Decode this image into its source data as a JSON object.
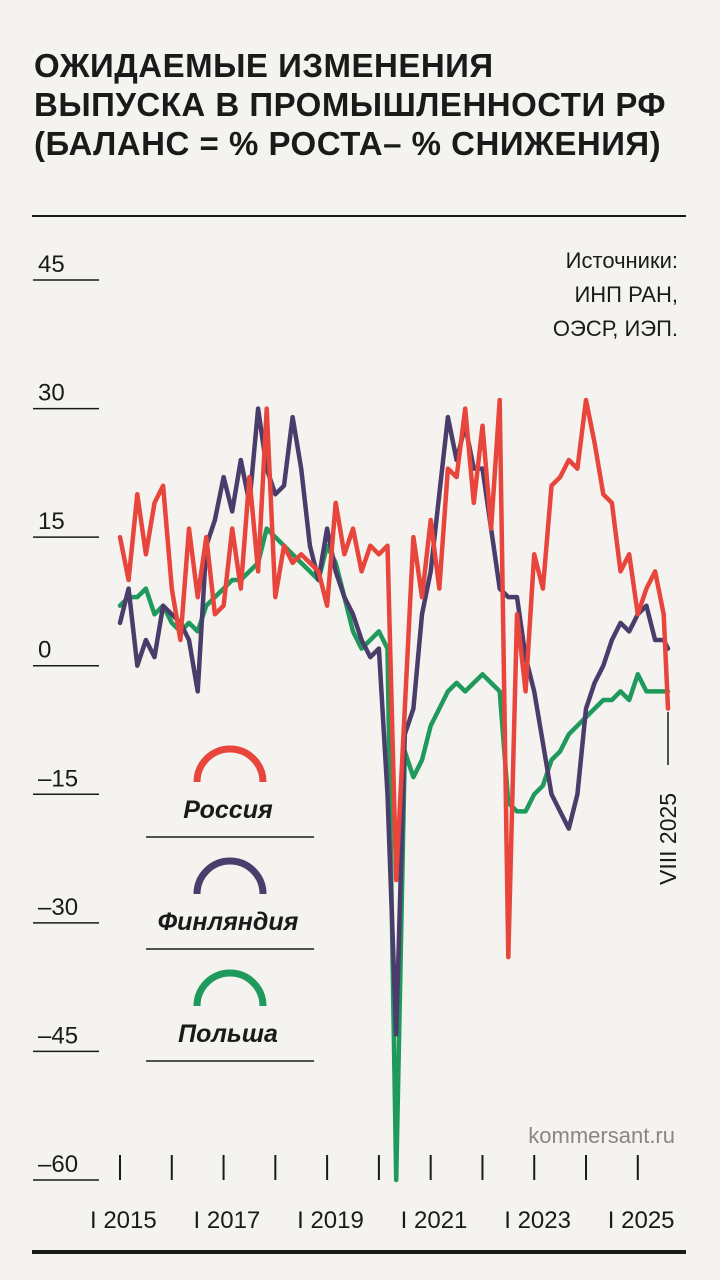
{
  "title": "Ожидаемые изменения выпуска в промышленности РФ (баланс = % роста– % снижения)",
  "source_label": [
    "Источники:",
    "ИНП РАН,",
    "ОЭСР, ИЭП."
  ],
  "watermark": "kommersant.ru",
  "end_label": "VIII 2025",
  "colors": {
    "russia": "#e8463c",
    "finland": "#4a3d6b",
    "poland": "#1f9a5c",
    "ink": "#1a1a1a"
  },
  "chart_data": {
    "type": "line",
    "title": "Ожидаемые изменения выпуска в промышленности РФ (баланс = % роста– % снижения)",
    "xlabel": "",
    "ylabel": "",
    "ylim": [
      -60,
      45
    ],
    "y_ticks": [
      45,
      30,
      15,
      0,
      -15,
      -30,
      -45,
      -60
    ],
    "y_tick_labels": [
      "45",
      "30",
      "15",
      "0",
      "–15",
      "–30",
      "–45",
      "–60"
    ],
    "x_range": [
      "2015-01",
      "2025-08"
    ],
    "x_labels": [
      {
        "year": 2015,
        "label": "I 2015"
      },
      {
        "year": 2017,
        "label": "I 2017"
      },
      {
        "year": 2019,
        "label": "I 2019"
      },
      {
        "year": 2021,
        "label": "I 2021"
      },
      {
        "year": 2023,
        "label": "I 2023"
      },
      {
        "year": 2025,
        "label": "I 2025"
      }
    ],
    "legend_position": "left",
    "grid": false,
    "series": [
      {
        "name": "Россия",
        "color": "#e8463c",
        "points": [
          [
            "2015-01",
            15
          ],
          [
            "2015-03",
            10
          ],
          [
            "2015-05",
            20
          ],
          [
            "2015-07",
            13
          ],
          [
            "2015-09",
            19
          ],
          [
            "2015-11",
            21
          ],
          [
            "2016-01",
            9
          ],
          [
            "2016-03",
            3
          ],
          [
            "2016-05",
            16
          ],
          [
            "2016-07",
            8
          ],
          [
            "2016-09",
            15
          ],
          [
            "2016-11",
            6
          ],
          [
            "2017-01",
            7
          ],
          [
            "2017-03",
            16
          ],
          [
            "2017-05",
            9
          ],
          [
            "2017-07",
            22
          ],
          [
            "2017-09",
            11
          ],
          [
            "2017-11",
            30
          ],
          [
            "2018-01",
            8
          ],
          [
            "2018-03",
            14
          ],
          [
            "2018-05",
            12
          ],
          [
            "2018-07",
            13
          ],
          [
            "2018-09",
            12
          ],
          [
            "2018-11",
            11
          ],
          [
            "2019-01",
            7
          ],
          [
            "2019-03",
            19
          ],
          [
            "2019-05",
            13
          ],
          [
            "2019-07",
            16
          ],
          [
            "2019-09",
            11
          ],
          [
            "2019-11",
            14
          ],
          [
            "2020-01",
            13
          ],
          [
            "2020-03",
            14
          ],
          [
            "2020-05",
            -25
          ],
          [
            "2020-07",
            -5
          ],
          [
            "2020-09",
            15
          ],
          [
            "2020-11",
            8
          ],
          [
            "2021-01",
            17
          ],
          [
            "2021-03",
            9
          ],
          [
            "2021-05",
            23
          ],
          [
            "2021-07",
            22
          ],
          [
            "2021-09",
            30
          ],
          [
            "2021-11",
            19
          ],
          [
            "2022-01",
            28
          ],
          [
            "2022-03",
            16
          ],
          [
            "2022-05",
            31
          ],
          [
            "2022-07",
            -34
          ],
          [
            "2022-09",
            6
          ],
          [
            "2022-11",
            -3
          ],
          [
            "2023-01",
            13
          ],
          [
            "2023-03",
            9
          ],
          [
            "2023-05",
            21
          ],
          [
            "2023-07",
            22
          ],
          [
            "2023-09",
            24
          ],
          [
            "2023-11",
            23
          ],
          [
            "2024-01",
            31
          ],
          [
            "2024-03",
            26
          ],
          [
            "2024-05",
            20
          ],
          [
            "2024-07",
            19
          ],
          [
            "2024-09",
            11
          ],
          [
            "2024-11",
            13
          ],
          [
            "2025-01",
            6
          ],
          [
            "2025-03",
            9
          ],
          [
            "2025-05",
            11
          ],
          [
            "2025-07",
            6
          ],
          [
            "2025-08",
            -5
          ]
        ]
      },
      {
        "name": "Финляндия",
        "color": "#4a3d6b",
        "points": [
          [
            "2015-01",
            5
          ],
          [
            "2015-03",
            9
          ],
          [
            "2015-05",
            0
          ],
          [
            "2015-07",
            3
          ],
          [
            "2015-09",
            1
          ],
          [
            "2015-11",
            7
          ],
          [
            "2016-01",
            6
          ],
          [
            "2016-03",
            5
          ],
          [
            "2016-05",
            3
          ],
          [
            "2016-07",
            -3
          ],
          [
            "2016-09",
            14
          ],
          [
            "2016-11",
            17
          ],
          [
            "2017-01",
            22
          ],
          [
            "2017-03",
            18
          ],
          [
            "2017-05",
            24
          ],
          [
            "2017-07",
            19
          ],
          [
            "2017-09",
            30
          ],
          [
            "2017-11",
            23
          ],
          [
            "2018-01",
            20
          ],
          [
            "2018-03",
            21
          ],
          [
            "2018-05",
            29
          ],
          [
            "2018-07",
            23
          ],
          [
            "2018-09",
            14
          ],
          [
            "2018-11",
            10
          ],
          [
            "2019-01",
            16
          ],
          [
            "2019-03",
            11
          ],
          [
            "2019-05",
            8
          ],
          [
            "2019-07",
            6
          ],
          [
            "2019-09",
            3
          ],
          [
            "2019-11",
            1
          ],
          [
            "2020-01",
            2
          ],
          [
            "2020-03",
            -15
          ],
          [
            "2020-05",
            -43
          ],
          [
            "2020-07",
            -8
          ],
          [
            "2020-09",
            -5
          ],
          [
            "2020-11",
            6
          ],
          [
            "2021-01",
            11
          ],
          [
            "2021-03",
            20
          ],
          [
            "2021-05",
            29
          ],
          [
            "2021-07",
            24
          ],
          [
            "2021-09",
            28
          ],
          [
            "2021-11",
            23
          ],
          [
            "2022-01",
            23
          ],
          [
            "2022-03",
            16
          ],
          [
            "2022-05",
            9
          ],
          [
            "2022-07",
            8
          ],
          [
            "2022-09",
            8
          ],
          [
            "2022-11",
            1
          ],
          [
            "2023-01",
            -3
          ],
          [
            "2023-03",
            -9
          ],
          [
            "2023-05",
            -15
          ],
          [
            "2023-07",
            -17
          ],
          [
            "2023-09",
            -19
          ],
          [
            "2023-11",
            -15
          ],
          [
            "2024-01",
            -5
          ],
          [
            "2024-03",
            -2
          ],
          [
            "2024-05",
            0
          ],
          [
            "2024-07",
            3
          ],
          [
            "2024-09",
            5
          ],
          [
            "2024-11",
            4
          ],
          [
            "2025-01",
            6
          ],
          [
            "2025-03",
            7
          ],
          [
            "2025-05",
            3
          ],
          [
            "2025-07",
            3
          ],
          [
            "2025-08",
            2
          ]
        ]
      },
      {
        "name": "Польша",
        "color": "#1f9a5c",
        "points": [
          [
            "2015-01",
            7
          ],
          [
            "2015-03",
            8
          ],
          [
            "2015-05",
            8
          ],
          [
            "2015-07",
            9
          ],
          [
            "2015-09",
            6
          ],
          [
            "2015-11",
            7
          ],
          [
            "2016-01",
            5
          ],
          [
            "2016-03",
            4
          ],
          [
            "2016-05",
            5
          ],
          [
            "2016-07",
            4
          ],
          [
            "2016-09",
            7
          ],
          [
            "2016-11",
            8
          ],
          [
            "2017-01",
            9
          ],
          [
            "2017-03",
            10
          ],
          [
            "2017-05",
            10
          ],
          [
            "2017-07",
            11
          ],
          [
            "2017-09",
            12
          ],
          [
            "2017-11",
            16
          ],
          [
            "2018-01",
            15
          ],
          [
            "2018-03",
            14
          ],
          [
            "2018-05",
            13
          ],
          [
            "2018-07",
            12
          ],
          [
            "2018-09",
            11
          ],
          [
            "2018-11",
            10
          ],
          [
            "2019-01",
            14
          ],
          [
            "2019-03",
            12
          ],
          [
            "2019-05",
            8
          ],
          [
            "2019-07",
            4
          ],
          [
            "2019-09",
            2
          ],
          [
            "2019-11",
            3
          ],
          [
            "2020-01",
            4
          ],
          [
            "2020-03",
            2
          ],
          [
            "2020-05",
            -60
          ],
          [
            "2020-07",
            -10
          ],
          [
            "2020-09",
            -13
          ],
          [
            "2020-11",
            -11
          ],
          [
            "2021-01",
            -7
          ],
          [
            "2021-03",
            -5
          ],
          [
            "2021-05",
            -3
          ],
          [
            "2021-07",
            -2
          ],
          [
            "2021-09",
            -3
          ],
          [
            "2021-11",
            -2
          ],
          [
            "2022-01",
            -1
          ],
          [
            "2022-03",
            -2
          ],
          [
            "2022-05",
            -3
          ],
          [
            "2022-07",
            -16
          ],
          [
            "2022-09",
            -17
          ],
          [
            "2022-11",
            -17
          ],
          [
            "2023-01",
            -15
          ],
          [
            "2023-03",
            -14
          ],
          [
            "2023-05",
            -11
          ],
          [
            "2023-07",
            -10
          ],
          [
            "2023-09",
            -8
          ],
          [
            "2023-11",
            -7
          ],
          [
            "2024-01",
            -6
          ],
          [
            "2024-03",
            -5
          ],
          [
            "2024-05",
            -4
          ],
          [
            "2024-07",
            -4
          ],
          [
            "2024-09",
            -3
          ],
          [
            "2024-11",
            -4
          ],
          [
            "2025-01",
            -1
          ],
          [
            "2025-03",
            -3
          ],
          [
            "2025-05",
            -3
          ],
          [
            "2025-07",
            -3
          ],
          [
            "2025-08",
            -3
          ]
        ]
      }
    ]
  }
}
